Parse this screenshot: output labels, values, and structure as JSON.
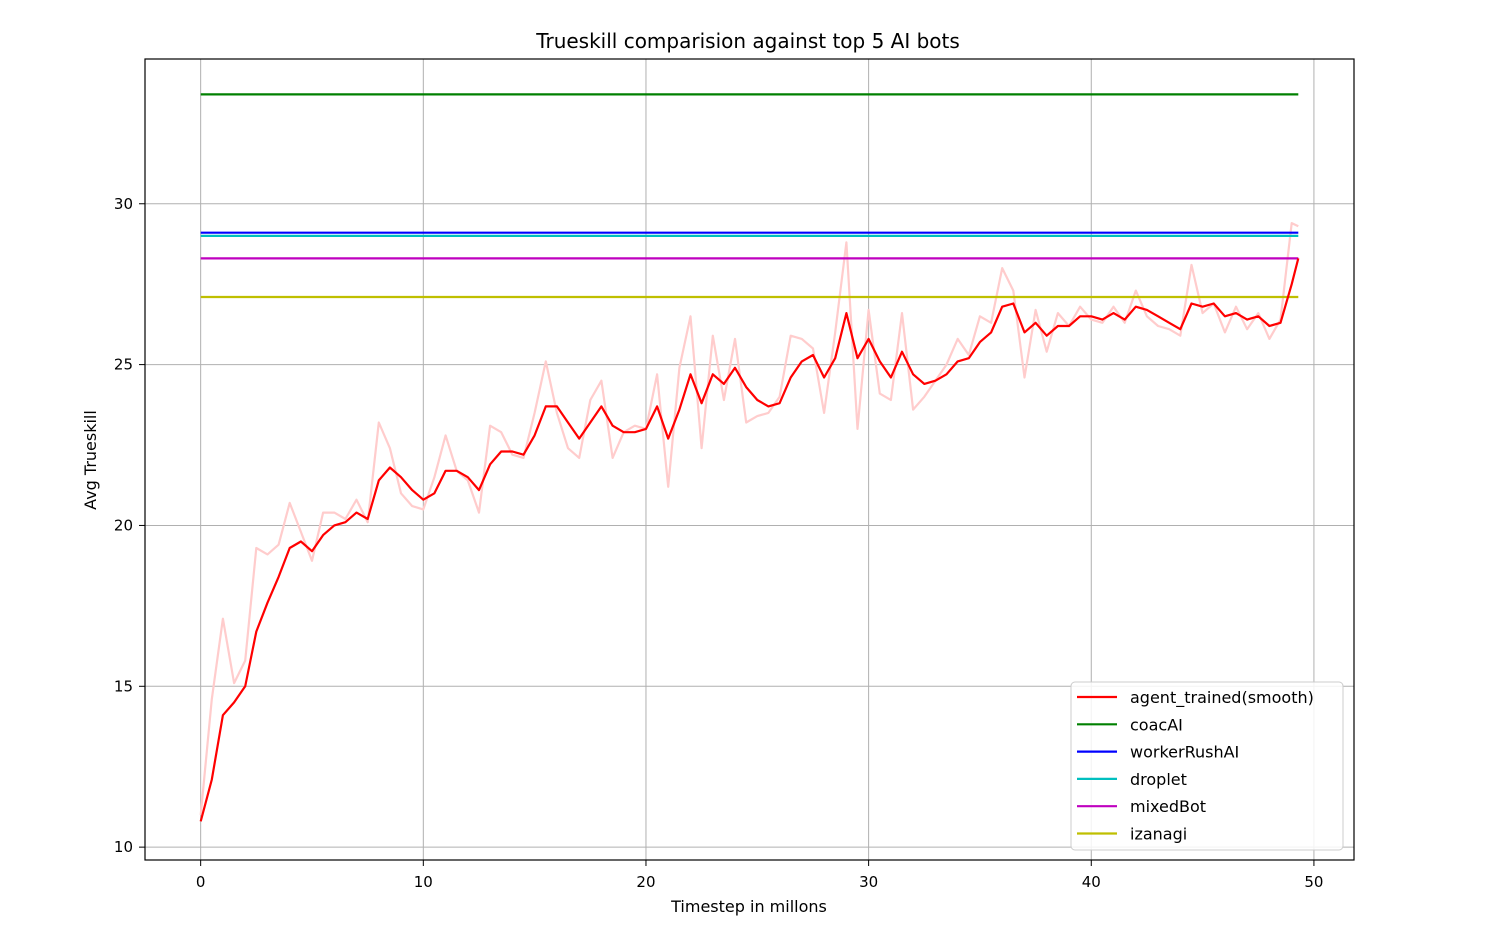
{
  "chart_data": {
    "type": "line",
    "title": "Trueskill comparision against top 5 AI bots",
    "xlabel": "Timestep in millons",
    "ylabel": "Avg Trueskill",
    "xlim": [
      -2.5,
      51.8
    ],
    "ylim": [
      9.6,
      34.5
    ],
    "xticks": [
      0,
      10,
      20,
      30,
      40,
      50
    ],
    "yticks": [
      10,
      15,
      20,
      25,
      30
    ],
    "grid": true,
    "legend_position": "lower-right",
    "raw_series": {
      "color": "#ffcccc",
      "x": [
        0,
        0.5,
        1,
        1.5,
        2,
        2.5,
        3,
        3.5,
        4,
        4.5,
        5,
        5.5,
        6,
        6.5,
        7,
        7.5,
        8,
        8.5,
        9,
        9.5,
        10,
        10.5,
        11,
        11.5,
        12,
        12.5,
        13,
        13.5,
        14,
        14.5,
        15,
        15.5,
        16,
        16.5,
        17,
        17.5,
        18,
        18.5,
        19,
        19.5,
        20,
        20.5,
        21,
        21.5,
        22,
        22.5,
        23,
        23.5,
        24,
        24.5,
        25,
        25.5,
        26,
        26.5,
        27,
        27.5,
        28,
        28.5,
        29,
        29.5,
        30,
        30.5,
        31,
        31.5,
        32,
        32.5,
        33,
        33.5,
        34,
        34.5,
        35,
        35.5,
        36,
        36.5,
        37,
        37.5,
        38,
        38.5,
        39,
        39.5,
        40,
        40.5,
        41,
        41.5,
        42,
        42.5,
        43,
        43.5,
        44,
        44.5,
        45,
        45.5,
        46,
        46.5,
        47,
        47.5,
        48,
        48.5,
        49,
        49.3
      ],
      "y": [
        11.0,
        14.6,
        17.1,
        15.1,
        15.8,
        19.3,
        19.1,
        19.4,
        20.7,
        19.8,
        18.9,
        20.4,
        20.4,
        20.2,
        20.8,
        20.1,
        23.2,
        22.4,
        21.0,
        20.6,
        20.5,
        21.5,
        22.8,
        21.7,
        21.4,
        20.4,
        23.1,
        22.9,
        22.2,
        22.1,
        23.5,
        25.1,
        23.5,
        22.4,
        22.1,
        23.9,
        24.5,
        22.1,
        22.9,
        23.1,
        23.0,
        24.7,
        21.2,
        24.9,
        26.5,
        22.4,
        25.9,
        23.9,
        25.8,
        23.2,
        23.4,
        23.5,
        24.0,
        25.9,
        25.8,
        25.5,
        23.5,
        26.0,
        28.8,
        23.0,
        26.7,
        24.1,
        23.9,
        26.6,
        23.6,
        24.0,
        24.5,
        25.0,
        25.8,
        25.3,
        26.5,
        26.3,
        28.0,
        27.3,
        24.6,
        26.7,
        25.4,
        26.6,
        26.2,
        26.8,
        26.4,
        26.3,
        26.8,
        26.3,
        27.3,
        26.5,
        26.2,
        26.1,
        25.9,
        28.1,
        26.6,
        26.9,
        26.0,
        26.8,
        26.1,
        26.6,
        25.8,
        26.4,
        29.4,
        29.3
      ]
    },
    "series": [
      {
        "name": "agent_trained(smooth)",
        "color": "#ff0000",
        "x": [
          0,
          0.5,
          1,
          1.5,
          2,
          2.5,
          3,
          3.5,
          4,
          4.5,
          5,
          5.5,
          6,
          6.5,
          7,
          7.5,
          8,
          8.5,
          9,
          9.5,
          10,
          10.5,
          11,
          11.5,
          12,
          12.5,
          13,
          13.5,
          14,
          14.5,
          15,
          15.5,
          16,
          16.5,
          17,
          17.5,
          18,
          18.5,
          19,
          19.5,
          20,
          20.5,
          21,
          21.5,
          22,
          22.5,
          23,
          23.5,
          24,
          24.5,
          25,
          25.5,
          26,
          26.5,
          27,
          27.5,
          28,
          28.5,
          29,
          29.5,
          30,
          30.5,
          31,
          31.5,
          32,
          32.5,
          33,
          33.5,
          34,
          34.5,
          35,
          35.5,
          36,
          36.5,
          37,
          37.5,
          38,
          38.5,
          39,
          39.5,
          40,
          40.5,
          41,
          41.5,
          42,
          42.5,
          43,
          43.5,
          44,
          44.5,
          45,
          45.5,
          46,
          46.5,
          47,
          47.5,
          48,
          48.5,
          49,
          49.3
        ],
        "y": [
          10.8,
          12.1,
          14.1,
          14.5,
          15.0,
          16.7,
          17.6,
          18.4,
          19.3,
          19.5,
          19.2,
          19.7,
          20.0,
          20.1,
          20.4,
          20.2,
          21.4,
          21.8,
          21.5,
          21.1,
          20.8,
          21.0,
          21.7,
          21.7,
          21.5,
          21.1,
          21.9,
          22.3,
          22.3,
          22.2,
          22.8,
          23.7,
          23.7,
          23.2,
          22.7,
          23.2,
          23.7,
          23.1,
          22.9,
          22.9,
          23.0,
          23.7,
          22.7,
          23.6,
          24.7,
          23.8,
          24.7,
          24.4,
          24.9,
          24.3,
          23.9,
          23.7,
          23.8,
          24.6,
          25.1,
          25.3,
          24.6,
          25.2,
          26.6,
          25.2,
          25.8,
          25.1,
          24.6,
          25.4,
          24.7,
          24.4,
          24.5,
          24.7,
          25.1,
          25.2,
          25.7,
          26.0,
          26.8,
          26.9,
          26.0,
          26.3,
          25.9,
          26.2,
          26.2,
          26.5,
          26.5,
          26.4,
          26.6,
          26.4,
          26.8,
          26.7,
          26.5,
          26.3,
          26.1,
          26.9,
          26.8,
          26.9,
          26.5,
          26.6,
          26.4,
          26.5,
          26.2,
          26.3,
          27.5,
          28.3
        ]
      },
      {
        "name": "coacAI",
        "color": "#008000",
        "x": [
          0,
          49.3
        ],
        "y": [
          33.4,
          33.4
        ]
      },
      {
        "name": "workerRushAI",
        "color": "#0000ff",
        "x": [
          0,
          49.3
        ],
        "y": [
          29.1,
          29.1
        ]
      },
      {
        "name": "droplet",
        "color": "#00bfbf",
        "x": [
          0,
          49.3
        ],
        "y": [
          29.0,
          29.0
        ]
      },
      {
        "name": "mixedBot",
        "color": "#bf00bf",
        "x": [
          0,
          49.3
        ],
        "y": [
          28.3,
          28.3
        ]
      },
      {
        "name": "izanagi",
        "color": "#bfbf00",
        "x": [
          0,
          49.3
        ],
        "y": [
          27.1,
          27.1
        ]
      }
    ]
  }
}
